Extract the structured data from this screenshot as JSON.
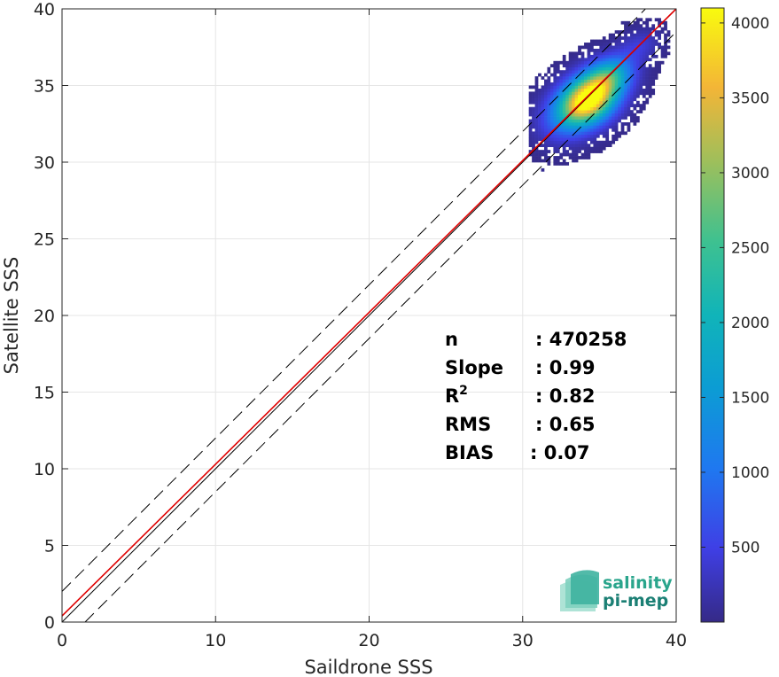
{
  "chart_data": {
    "type": "heatmap",
    "xlabel": "Saildrone SSS",
    "ylabel": "Satellite SSS",
    "xlim": [
      0,
      40
    ],
    "ylim": [
      0,
      40
    ],
    "xticks": [
      "0",
      "10",
      "20",
      "30",
      "40"
    ],
    "yticks": [
      "0",
      "5",
      "10",
      "15",
      "20",
      "25",
      "30",
      "35",
      "40"
    ],
    "grid": true,
    "colorbar": {
      "range": [
        0,
        4100
      ],
      "ticks": [
        "500",
        "1000",
        "1500",
        "2000",
        "2500",
        "3000",
        "3500",
        "4000"
      ],
      "colormap": "parula"
    },
    "lines": [
      {
        "type": "identity",
        "color": "#000000",
        "style": "solid",
        "slope": 1,
        "intercept": 0
      },
      {
        "type": "regression",
        "color": "#e00000",
        "style": "solid",
        "slope": 0.99,
        "intercept": 0.4
      },
      {
        "type": "upper-bound",
        "color": "#000000",
        "style": "dashed",
        "slope": 1,
        "intercept": 2
      },
      {
        "type": "lower-bound",
        "color": "#000000",
        "style": "dashed",
        "slope": 1,
        "intercept": -1.5
      }
    ],
    "density_clusters": [
      {
        "x": 34.2,
        "y": 34.0,
        "sx": 1.4,
        "sy": 1.2,
        "peak": 4000
      },
      {
        "x": 35.5,
        "y": 35.5,
        "sx": 1.2,
        "sy": 1.0,
        "peak": 1800
      },
      {
        "x": 33.0,
        "y": 33.0,
        "sx": 1.5,
        "sy": 1.3,
        "peak": 900
      },
      {
        "x": 37.5,
        "y": 37.5,
        "sx": 1.0,
        "sy": 0.8,
        "peak": 400
      }
    ],
    "stats": [
      {
        "label": "n",
        "value": ": 470258"
      },
      {
        "label": "Slope",
        "value": ": 0.99"
      },
      {
        "label": "R",
        "sup": "2",
        "value": ": 0.82"
      },
      {
        "label": "RMS",
        "value": ": 0.65"
      },
      {
        "label": "BIAS",
        "value": ": 0.07"
      }
    ]
  },
  "logo": {
    "line1": "salinity",
    "line2": "pi-mep",
    "color1": "#2aa58c",
    "color2": "#1b7f74"
  }
}
